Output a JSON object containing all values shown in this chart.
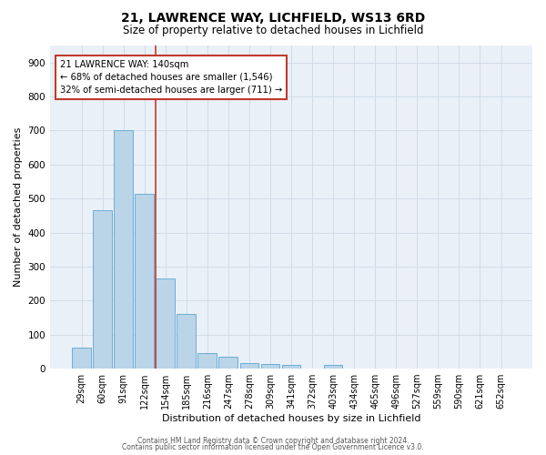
{
  "title_line1": "21, LAWRENCE WAY, LICHFIELD, WS13 6RD",
  "title_line2": "Size of property relative to detached houses in Lichfield",
  "xlabel": "Distribution of detached houses by size in Lichfield",
  "ylabel": "Number of detached properties",
  "bar_labels": [
    "29sqm",
    "60sqm",
    "91sqm",
    "122sqm",
    "154sqm",
    "185sqm",
    "216sqm",
    "247sqm",
    "278sqm",
    "309sqm",
    "341sqm",
    "372sqm",
    "403sqm",
    "434sqm",
    "465sqm",
    "496sqm",
    "527sqm",
    "559sqm",
    "590sqm",
    "621sqm",
    "652sqm"
  ],
  "bar_values": [
    62,
    466,
    700,
    514,
    265,
    160,
    47,
    35,
    17,
    13,
    10,
    0,
    10,
    0,
    0,
    0,
    0,
    0,
    0,
    0,
    0
  ],
  "bar_color": "#bad4e8",
  "bar_edge_color": "#6baed6",
  "grid_color": "#d0dce8",
  "background_color": "#eaf0f8",
  "vline_color": "#c0392b",
  "annotation_text": "21 LAWRENCE WAY: 140sqm\n← 68% of detached houses are smaller (1,546)\n32% of semi-detached houses are larger (711) →",
  "annotation_box_color": "#ffffff",
  "annotation_box_edge": "#c0392b",
  "ylim": [
    0,
    950
  ],
  "yticks": [
    0,
    100,
    200,
    300,
    400,
    500,
    600,
    700,
    800,
    900
  ],
  "footer_line1": "Contains HM Land Registry data © Crown copyright and database right 2024.",
  "footer_line2": "Contains public sector information licensed under the Open Government Licence v3.0."
}
